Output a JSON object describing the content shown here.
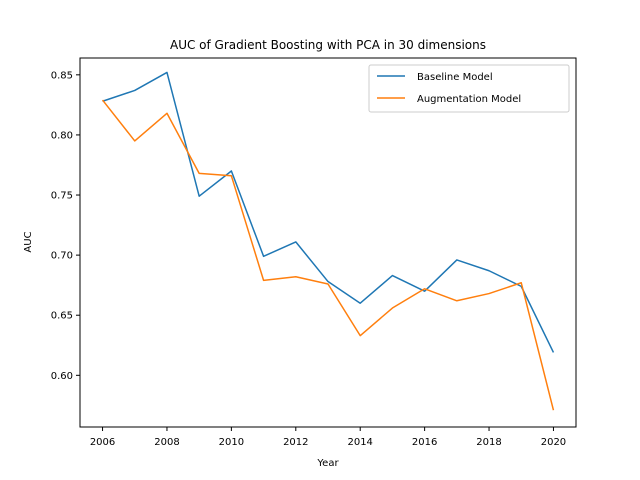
{
  "chart_data": {
    "type": "line",
    "title": "AUC of Gradient Boosting with PCA in 30 dimensions",
    "xlabel": "Year",
    "ylabel": "AUC",
    "x": [
      2006,
      2007,
      2008,
      2009,
      2010,
      2011,
      2012,
      2013,
      2014,
      2015,
      2016,
      2017,
      2018,
      2019,
      2020
    ],
    "xticks": [
      "2006",
      "2008",
      "2010",
      "2012",
      "2014",
      "2016",
      "2018",
      "2020"
    ],
    "yticks": [
      "0.60",
      "0.65",
      "0.70",
      "0.75",
      "0.80",
      "0.85"
    ],
    "xlim": [
      2005.3,
      2020.7
    ],
    "ylim": [
      0.557,
      0.864
    ],
    "grid": false,
    "legend_position": "top-right",
    "series": [
      {
        "name": "Baseline Model",
        "color": "#1f77b4",
        "values": [
          0.828,
          0.837,
          0.852,
          0.749,
          0.77,
          0.699,
          0.711,
          0.678,
          0.66,
          0.683,
          0.67,
          0.696,
          0.687,
          0.674,
          0.619
        ]
      },
      {
        "name": "Augmentation Model",
        "color": "#ff7f0e",
        "values": [
          0.829,
          0.795,
          0.818,
          0.768,
          0.766,
          0.679,
          0.682,
          0.676,
          0.633,
          0.656,
          0.672,
          0.662,
          0.668,
          0.677,
          0.571
        ]
      }
    ]
  }
}
